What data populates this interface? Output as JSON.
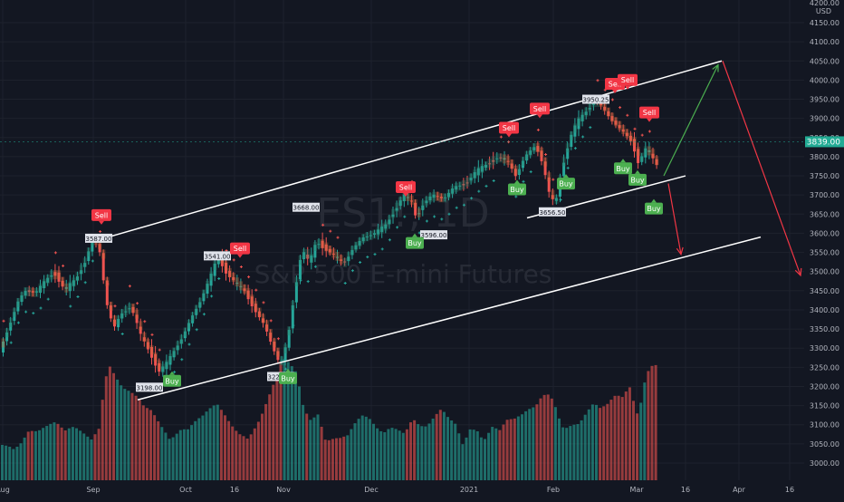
{
  "chart_data": {
    "type": "candlestick",
    "symbol_watermark": "ES1!, 1D",
    "instrument_watermark": "S&P 500 E-mini Futures",
    "currency": "USD",
    "axis_top_label": "4200.00",
    "last_price": "3839.00",
    "y_ticks": [
      "4150.00",
      "4100.00",
      "4050.00",
      "4000.00",
      "3950.00",
      "3900.00",
      "3850.00",
      "3800.00",
      "3750.00",
      "3700.00",
      "3650.00",
      "3600.00",
      "3550.00",
      "3500.00",
      "3450.00",
      "3400.00",
      "3350.00",
      "3300.00",
      "3250.00",
      "3200.00",
      "3150.00",
      "3100.00",
      "3050.00",
      "3000.00"
    ],
    "x_ticks": [
      "Aug",
      "Sep",
      "Oct",
      "16",
      "Nov",
      "Dec",
      "2021",
      "Feb",
      "Mar",
      "16",
      "Apr",
      "16"
    ],
    "ylim": [
      2975,
      4212
    ],
    "price_path": [
      [
        0,
        3290
      ],
      [
        10,
        3355
      ],
      [
        20,
        3420
      ],
      [
        28,
        3450
      ],
      [
        40,
        3445
      ],
      [
        52,
        3480
      ],
      [
        60,
        3500
      ],
      [
        72,
        3450
      ],
      [
        84,
        3480
      ],
      [
        95,
        3530
      ],
      [
        103,
        3587
      ],
      [
        110,
        3560
      ],
      [
        118,
        3420
      ],
      [
        126,
        3350
      ],
      [
        134,
        3390
      ],
      [
        145,
        3410
      ],
      [
        156,
        3330
      ],
      [
        166,
        3290
      ],
      [
        176,
        3240
      ],
      [
        184,
        3258
      ],
      [
        192,
        3290
      ],
      [
        202,
        3330
      ],
      [
        212,
        3380
      ],
      [
        222,
        3425
      ],
      [
        232,
        3480
      ],
      [
        241,
        3540
      ],
      [
        250,
        3500
      ],
      [
        260,
        3470
      ],
      [
        270,
        3450
      ],
      [
        282,
        3400
      ],
      [
        292,
        3360
      ],
      [
        302,
        3300
      ],
      [
        310,
        3255
      ],
      [
        318,
        3320
      ],
      [
        326,
        3450
      ],
      [
        334,
        3560
      ],
      [
        342,
        3520
      ],
      [
        350,
        3580
      ],
      [
        360,
        3560
      ],
      [
        370,
        3540
      ],
      [
        380,
        3520
      ],
      [
        390,
        3560
      ],
      [
        402,
        3590
      ],
      [
        414,
        3600
      ],
      [
        426,
        3620
      ],
      [
        436,
        3660
      ],
      [
        446,
        3700
      ],
      [
        455,
        3680
      ],
      [
        460,
        3640
      ],
      [
        468,
        3680
      ],
      [
        478,
        3700
      ],
      [
        490,
        3690
      ],
      [
        502,
        3720
      ],
      [
        514,
        3730
      ],
      [
        526,
        3760
      ],
      [
        538,
        3780
      ],
      [
        550,
        3800
      ],
      [
        560,
        3790
      ],
      [
        570,
        3750
      ],
      [
        580,
        3800
      ],
      [
        592,
        3830
      ],
      [
        600,
        3780
      ],
      [
        608,
        3690
      ],
      [
        614,
        3680
      ],
      [
        622,
        3780
      ],
      [
        630,
        3850
      ],
      [
        638,
        3890
      ],
      [
        648,
        3920
      ],
      [
        658,
        3950
      ],
      [
        665,
        3930
      ],
      [
        674,
        3900
      ],
      [
        682,
        3880
      ],
      [
        690,
        3860
      ],
      [
        698,
        3840
      ],
      [
        706,
        3780
      ],
      [
        712,
        3820
      ],
      [
        718,
        3810
      ],
      [
        724,
        3780
      ]
    ],
    "volume_bars": [
      [
        0,
        0.35
      ],
      [
        10,
        0.4
      ],
      [
        20,
        0.38
      ],
      [
        30,
        0.45
      ],
      [
        40,
        0.4
      ],
      [
        50,
        0.42
      ],
      [
        60,
        0.45
      ],
      [
        70,
        0.4
      ],
      [
        80,
        0.48
      ],
      [
        90,
        0.5
      ],
      [
        100,
        0.52
      ],
      [
        108,
        0.55
      ],
      [
        114,
        0.95
      ],
      [
        120,
        1.0
      ],
      [
        126,
        0.85
      ],
      [
        134,
        0.72
      ],
      [
        142,
        0.68
      ],
      [
        150,
        0.65
      ],
      [
        158,
        0.6
      ],
      [
        166,
        0.62
      ],
      [
        174,
        0.58
      ],
      [
        182,
        0.55
      ],
      [
        190,
        0.5
      ],
      [
        198,
        0.5
      ],
      [
        206,
        0.45
      ],
      [
        214,
        0.48
      ],
      [
        222,
        0.5
      ],
      [
        230,
        0.55
      ],
      [
        238,
        0.6
      ],
      [
        246,
        0.55
      ],
      [
        254,
        0.5
      ],
      [
        262,
        0.48
      ],
      [
        270,
        0.52
      ],
      [
        278,
        0.55
      ],
      [
        286,
        0.6
      ],
      [
        294,
        0.7
      ],
      [
        302,
        0.8
      ],
      [
        310,
        0.95
      ],
      [
        318,
        0.9
      ],
      [
        326,
        0.85
      ],
      [
        334,
        0.6
      ],
      [
        342,
        0.55
      ],
      [
        350,
        0.7
      ],
      [
        358,
        0.5
      ],
      [
        366,
        0.45
      ],
      [
        374,
        0.4
      ],
      [
        382,
        0.38
      ],
      [
        390,
        0.45
      ],
      [
        398,
        0.5
      ],
      [
        406,
        0.48
      ],
      [
        414,
        0.42
      ],
      [
        422,
        0.4
      ],
      [
        430,
        0.5
      ],
      [
        438,
        0.55
      ],
      [
        446,
        0.6
      ],
      [
        454,
        0.65
      ],
      [
        462,
        0.5
      ],
      [
        470,
        0.45
      ],
      [
        478,
        0.5
      ],
      [
        486,
        0.55
      ],
      [
        494,
        0.48
      ],
      [
        502,
        0.45
      ],
      [
        510,
        0.3
      ],
      [
        518,
        0.5
      ],
      [
        526,
        0.55
      ],
      [
        534,
        0.5
      ],
      [
        542,
        0.55
      ],
      [
        550,
        0.45
      ],
      [
        558,
        0.5
      ],
      [
        566,
        0.48
      ],
      [
        574,
        0.5
      ],
      [
        582,
        0.55
      ],
      [
        590,
        0.6
      ],
      [
        598,
        0.75
      ],
      [
        606,
        0.85
      ],
      [
        614,
        0.8
      ],
      [
        622,
        0.6
      ],
      [
        630,
        0.55
      ],
      [
        638,
        0.5
      ],
      [
        646,
        0.55
      ],
      [
        654,
        0.6
      ],
      [
        662,
        0.55
      ],
      [
        670,
        0.6
      ],
      [
        678,
        0.7
      ],
      [
        686,
        0.75
      ],
      [
        694,
        0.95
      ],
      [
        702,
        0.8
      ],
      [
        710,
        1.1
      ],
      [
        716,
        1.15
      ],
      [
        722,
        1.05
      ]
    ],
    "signals": [
      {
        "type": "Sell",
        "x": 112,
        "price": 3632
      },
      {
        "type": "Buy",
        "x": 190,
        "price": 3230
      },
      {
        "type": "Sell",
        "x": 265,
        "price": 3545
      },
      {
        "type": "Buy",
        "x": 318,
        "price": 3237
      },
      {
        "type": "Sell",
        "x": 448,
        "price": 3705
      },
      {
        "type": "Buy",
        "x": 458,
        "price": 3590
      },
      {
        "type": "Buy",
        "x": 571,
        "price": 3730
      },
      {
        "type": "Sell",
        "x": 562,
        "price": 3860
      },
      {
        "type": "Sell",
        "x": 596,
        "price": 3910
      },
      {
        "type": "Buy",
        "x": 625,
        "price": 3745
      },
      {
        "type": "Sell",
        "x": 679,
        "price": 3975
      },
      {
        "type": "Sell",
        "x": 693,
        "price": 3985
      },
      {
        "type": "Buy",
        "x": 688,
        "price": 3785
      },
      {
        "type": "Buy",
        "x": 704,
        "price": 3755
      },
      {
        "type": "Buy",
        "x": 722,
        "price": 3680
      },
      {
        "type": "Sell",
        "x": 717,
        "price": 3900
      }
    ],
    "price_labels": [
      {
        "text": "3587.00",
        "x": 109,
        "price": 3587
      },
      {
        "text": "3541.00",
        "x": 240,
        "price": 3541
      },
      {
        "text": "3198.00",
        "x": 165,
        "price": 3198
      },
      {
        "text": "3226.00",
        "x": 310,
        "price": 3226
      },
      {
        "text": "3668.00",
        "x": 338,
        "price": 3668
      },
      {
        "text": "3596.00",
        "x": 479,
        "price": 3596
      },
      {
        "text": "3656.50",
        "x": 610,
        "price": 3656
      },
      {
        "text": "3950.25",
        "x": 658,
        "price": 3950
      }
    ],
    "channel_lines": [
      {
        "x1": 115,
        "p1": 3587,
        "x2": 797,
        "p2": 4050
      },
      {
        "x1": 152,
        "p1": 3165,
        "x2": 840,
        "p2": 3590
      },
      {
        "x1": 582,
        "p1": 3640,
        "x2": 757,
        "p2": 3750
      }
    ],
    "projection_arrows": [
      {
        "color": "#4caf50",
        "x1": 733,
        "p1": 3750,
        "x2": 793,
        "p2": 4040
      },
      {
        "color": "#f23645",
        "x1": 798,
        "p1": 4050,
        "x2": 884,
        "p2": 3490
      },
      {
        "color": "#f23645",
        "x1": 738,
        "p1": 3730,
        "x2": 752,
        "p2": 3545
      }
    ]
  }
}
